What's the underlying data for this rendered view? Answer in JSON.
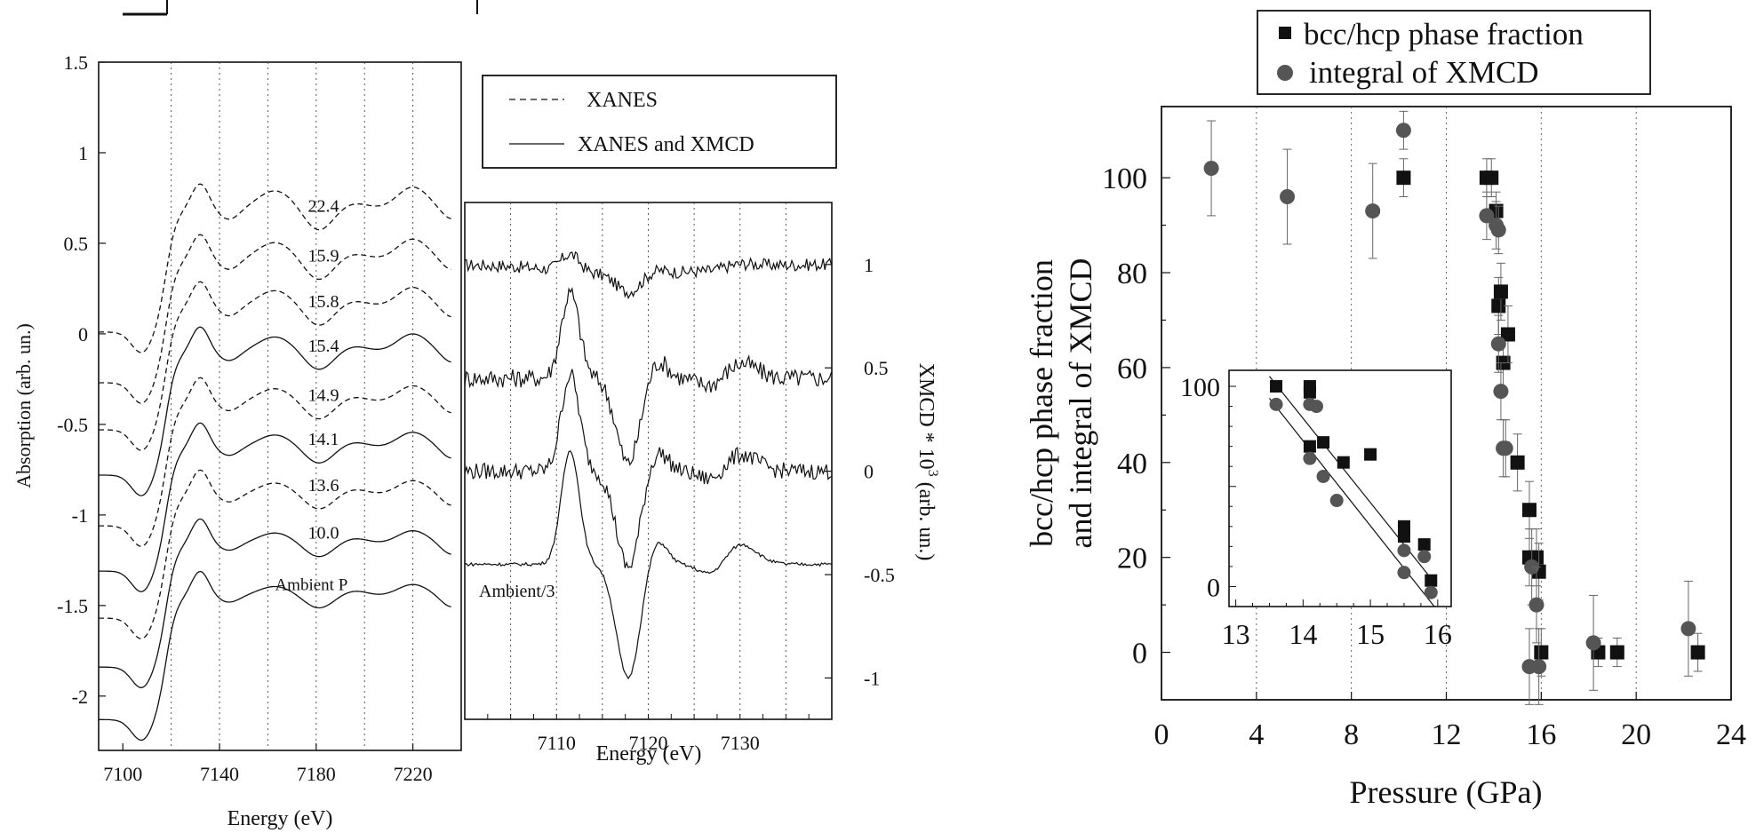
{
  "chart_data": [
    {
      "type": "line",
      "xlabel": "Energy (eV)",
      "ylabel": "Absorption (arb. un.)",
      "xlim": [
        7090,
        7240
      ],
      "ylim": [
        -2.3,
        1.5
      ],
      "x_ticks": [
        7100,
        7140,
        7180,
        7220
      ],
      "y_ticks": [
        1.5,
        1,
        0.5,
        0,
        -0.5,
        -1,
        -1.5,
        -2
      ],
      "y_tick_labels": [
        "1.5",
        "1",
        "0.5",
        "0",
        "-0.5",
        "-1",
        "-1.5",
        "-2"
      ],
      "grid": "vertical dotted",
      "legend": {
        "placement": "top-right",
        "entries": [
          {
            "label": "XANES",
            "style": "dashed"
          },
          {
            "label": "XANES and XMCD",
            "style": "solid"
          }
        ]
      },
      "series": [
        {
          "name": "22.4",
          "style": "dashed",
          "offset": 0.26
        },
        {
          "name": "15.9",
          "style": "dashed",
          "offset": -0.02
        },
        {
          "name": "15.8",
          "style": "dashed",
          "offset": -0.28
        },
        {
          "name": "15.4",
          "style": "solid",
          "offset": -0.53
        },
        {
          "name": "14.9",
          "style": "dashed",
          "offset": -0.81
        },
        {
          "name": "14.1",
          "style": "solid",
          "offset": -1.06
        },
        {
          "name": "13.6",
          "style": "dashed",
          "offset": -1.32
        },
        {
          "name": "10.0",
          "style": "solid",
          "offset": -1.59
        },
        {
          "name": "Ambient P",
          "style": "solid",
          "offset": -1.88
        }
      ]
    },
    {
      "type": "line",
      "xlabel": "Energy (eV)",
      "ylabel": "XMCD * 10³ (arb. un.)",
      "ylabel_main": "XMCD * 10",
      "ylabel_sup": "3",
      "ylabel_tail": " (arb. un.)",
      "xlim": [
        7100,
        7140
      ],
      "ylim": [
        -1.2,
        1.3
      ],
      "x_ticks": [
        7110,
        7120,
        7130
      ],
      "y_ticks": [
        1,
        0.5,
        0,
        -0.5,
        -1
      ],
      "y_tick_labels": [
        "1",
        "0.5",
        "0",
        "-0.5",
        "-1"
      ],
      "grid": "vertical dotted",
      "annotations": [
        "Ambient/3"
      ],
      "series": [
        {
          "offset": 1.0,
          "amp": 0.15,
          "noise": 0.03
        },
        {
          "offset": 0.45,
          "amp": 0.75,
          "noise": 0.045
        },
        {
          "offset": 0.0,
          "amp": 0.85,
          "noise": 0.04
        },
        {
          "offset": -0.45,
          "amp": 1.0,
          "noise": 0.008
        }
      ]
    },
    {
      "type": "scatter",
      "xlabel": "Pressure (GPa)",
      "ylabel": "bcc/hcp phase fraction and integral of XMCD",
      "ylabel_lines": [
        "bcc/hcp phase fraction",
        "and integral of XMCD"
      ],
      "xlim": [
        0,
        24
      ],
      "ylim": [
        -10,
        115
      ],
      "x_ticks": [
        0,
        4,
        8,
        12,
        16,
        20,
        24
      ],
      "y_ticks": [
        0,
        20,
        40,
        60,
        80,
        100
      ],
      "grid": "vertical dotted",
      "legend": {
        "placement": "top",
        "entries": [
          {
            "label": "bcc/hcp phase fraction",
            "marker": "square"
          },
          {
            "label": "integral of XMCD",
            "marker": "circle"
          }
        ]
      },
      "series": [
        {
          "name": "bcc/hcp phase fraction",
          "marker": "square",
          "x": [
            10.2,
            13.7,
            13.9,
            14.1,
            14.2,
            14.3,
            14.4,
            14.6,
            15.0,
            15.5,
            15.5,
            15.8,
            15.9,
            16.0,
            18.4,
            19.2,
            22.6
          ],
          "y": [
            100,
            100,
            100,
            93,
            73,
            76,
            61,
            67,
            40,
            30,
            20,
            20,
            17,
            0,
            0,
            0,
            0
          ],
          "err": [
            4,
            4,
            4,
            4,
            6,
            6,
            6,
            6,
            6,
            6,
            6,
            6,
            6,
            5,
            3,
            3,
            4
          ]
        },
        {
          "name": "integral of XMCD",
          "marker": "circle",
          "x": [
            2.1,
            5.3,
            8.9,
            10.2,
            13.7,
            14.1,
            14.2,
            14.2,
            14.3,
            14.4,
            14.5,
            15.5,
            15.6,
            15.8,
            15.9,
            18.2,
            22.2
          ],
          "y": [
            102,
            96,
            93,
            110,
            92,
            90,
            89,
            65,
            55,
            43,
            43,
            -3,
            18,
            10,
            -3,
            2,
            5
          ],
          "err": [
            10,
            10,
            10,
            4,
            5,
            5,
            5,
            6,
            6,
            6,
            6,
            8,
            8,
            8,
            8,
            10,
            10
          ]
        }
      ],
      "inset": {
        "xlim": [
          12.9,
          16.2
        ],
        "ylim": [
          -10,
          108
        ],
        "x_ticks": [
          13,
          14,
          15,
          16
        ],
        "y_ticks": [
          0,
          100
        ],
        "squares": {
          "x": [
            13.6,
            14.1,
            14.1,
            14.1,
            14.3,
            14.6,
            15.0,
            15.5,
            15.5,
            15.8,
            15.9
          ],
          "y": [
            100,
            100,
            97,
            70,
            72,
            62,
            66,
            30,
            25,
            21,
            3
          ]
        },
        "circles": {
          "x": [
            13.6,
            14.1,
            14.2,
            14.1,
            14.3,
            14.5,
            15.5,
            15.5,
            15.8,
            15.9
          ],
          "y": [
            91,
            91,
            90,
            64,
            55,
            43,
            18,
            7,
            15,
            -3
          ]
        },
        "fit_lines": [
          {
            "x": [
              13.5,
              15.95
            ],
            "y": [
              105,
              2
            ]
          },
          {
            "x": [
              13.5,
              15.95
            ],
            "y": [
              94,
              -10
            ]
          }
        ]
      }
    }
  ]
}
